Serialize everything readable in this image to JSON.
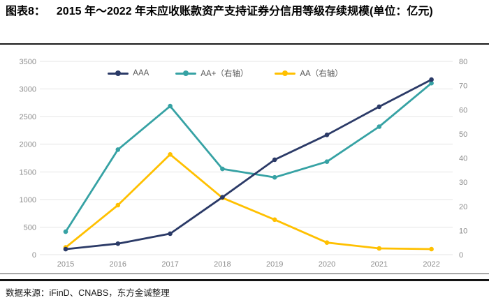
{
  "header": {
    "label": "图表8：",
    "title": "2015 年～2022 年末应收账款资产支持证券分信用等级存续规模(单位：亿元)"
  },
  "footer": {
    "source": "数据来源：iFinD、CNABS，东方金诚整理"
  },
  "colors": {
    "navy": "#2B3A67",
    "teal": "#36A2A4",
    "gold": "#FFC000",
    "grid": "#E4E4E4",
    "axis_text": "#8C8C8C",
    "legend_text": "#595959",
    "rule": "#1A1A1A"
  },
  "chart_data": {
    "type": "line",
    "title": "2015 年～2022 年末应收账款资产支持证券分信用等级存续规模(单位：亿元)",
    "categories": [
      "2015",
      "2016",
      "2017",
      "2018",
      "2019",
      "2020",
      "2021",
      "2022"
    ],
    "series": [
      {
        "name": "AAA",
        "axis": "left",
        "color_key": "navy",
        "values": [
          100,
          200,
          380,
          1040,
          1720,
          2170,
          2680,
          3170
        ]
      },
      {
        "name": "AA+（右轴）",
        "axis": "right",
        "color_key": "teal",
        "values": [
          9.5,
          43.5,
          61.5,
          35.5,
          32,
          38.5,
          53,
          71
        ]
      },
      {
        "name": "AA（右轴）",
        "axis": "right",
        "color_key": "gold",
        "values": [
          3,
          20.5,
          41.5,
          23.5,
          14.5,
          5,
          2.6,
          2.3
        ]
      }
    ],
    "left_axis": {
      "min": 0,
      "max": 3500,
      "step": 500
    },
    "right_axis": {
      "min": 0,
      "max": 80,
      "step": 10
    },
    "grid": true,
    "legend_position": "top"
  }
}
